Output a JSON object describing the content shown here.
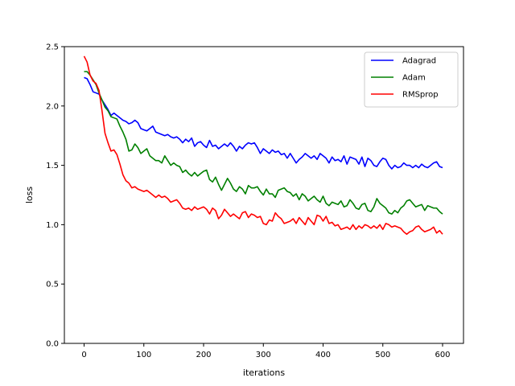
{
  "chart_data": {
    "type": "line",
    "title": "",
    "xlabel": "iterations",
    "ylabel": "loss",
    "xlim": [
      -33,
      635
    ],
    "ylim": [
      0,
      2.5
    ],
    "xticks": [
      0,
      100,
      200,
      300,
      400,
      500,
      600
    ],
    "yticks": [
      0.0,
      0.5,
      1.0,
      1.5,
      2.0,
      2.5
    ],
    "xtick_labels": [
      "0",
      "100",
      "200",
      "300",
      "400",
      "500",
      "600"
    ],
    "ytick_labels": [
      "0.0",
      "0.5",
      "1.0",
      "1.5",
      "2.0",
      "2.5"
    ],
    "grid": false,
    "legend_position": "top-right",
    "series": [
      {
        "name": "Adagrad",
        "color": "#0000ff",
        "x": [
          0,
          5,
          10,
          15,
          20,
          25,
          30,
          35,
          40,
          45,
          50,
          55,
          60,
          65,
          70,
          75,
          80,
          85,
          90,
          95,
          100,
          105,
          110,
          115,
          120,
          125,
          130,
          135,
          140,
          145,
          150,
          155,
          160,
          165,
          170,
          175,
          180,
          185,
          190,
          195,
          200,
          205,
          210,
          215,
          220,
          225,
          230,
          235,
          240,
          245,
          250,
          255,
          260,
          265,
          270,
          275,
          280,
          285,
          290,
          295,
          300,
          305,
          310,
          315,
          320,
          325,
          330,
          335,
          340,
          345,
          350,
          355,
          360,
          365,
          370,
          375,
          380,
          385,
          390,
          395,
          400,
          405,
          410,
          415,
          420,
          425,
          430,
          435,
          440,
          445,
          450,
          455,
          460,
          465,
          470,
          475,
          480,
          485,
          490,
          495,
          500,
          505,
          510,
          515,
          520,
          525,
          530,
          535,
          540,
          545,
          550,
          555,
          560,
          565,
          570,
          575,
          580,
          585,
          590,
          595,
          600
        ],
        "y": [
          2.24,
          2.23,
          2.18,
          2.12,
          2.11,
          2.1,
          2.05,
          2.01,
          1.97,
          1.92,
          1.94,
          1.92,
          1.9,
          1.88,
          1.87,
          1.85,
          1.86,
          1.88,
          1.86,
          1.81,
          1.8,
          1.79,
          1.81,
          1.83,
          1.78,
          1.77,
          1.76,
          1.75,
          1.76,
          1.74,
          1.73,
          1.74,
          1.72,
          1.69,
          1.72,
          1.7,
          1.73,
          1.66,
          1.69,
          1.7,
          1.67,
          1.65,
          1.71,
          1.66,
          1.67,
          1.64,
          1.66,
          1.68,
          1.66,
          1.69,
          1.66,
          1.62,
          1.66,
          1.64,
          1.67,
          1.69,
          1.68,
          1.69,
          1.65,
          1.6,
          1.64,
          1.62,
          1.6,
          1.63,
          1.61,
          1.62,
          1.59,
          1.6,
          1.56,
          1.6,
          1.56,
          1.52,
          1.55,
          1.57,
          1.6,
          1.58,
          1.56,
          1.58,
          1.55,
          1.6,
          1.58,
          1.56,
          1.52,
          1.57,
          1.54,
          1.55,
          1.53,
          1.58,
          1.51,
          1.57,
          1.56,
          1.55,
          1.51,
          1.57,
          1.49,
          1.56,
          1.54,
          1.5,
          1.49,
          1.53,
          1.56,
          1.55,
          1.5,
          1.47,
          1.5,
          1.48,
          1.49,
          1.52,
          1.5,
          1.5,
          1.48,
          1.5,
          1.48,
          1.51,
          1.49,
          1.48,
          1.5,
          1.52,
          1.53,
          1.49,
          1.48
        ]
      },
      {
        "name": "Adam",
        "color": "#008000",
        "x": [
          0,
          5,
          10,
          15,
          20,
          25,
          30,
          35,
          40,
          45,
          50,
          55,
          60,
          65,
          70,
          75,
          80,
          85,
          90,
          95,
          100,
          105,
          110,
          115,
          120,
          125,
          130,
          135,
          140,
          145,
          150,
          155,
          160,
          165,
          170,
          175,
          180,
          185,
          190,
          195,
          200,
          205,
          210,
          215,
          220,
          225,
          230,
          235,
          240,
          245,
          250,
          255,
          260,
          265,
          270,
          275,
          280,
          285,
          290,
          295,
          300,
          305,
          310,
          315,
          320,
          325,
          330,
          335,
          340,
          345,
          350,
          355,
          360,
          365,
          370,
          375,
          380,
          385,
          390,
          395,
          400,
          405,
          410,
          415,
          420,
          425,
          430,
          435,
          440,
          445,
          450,
          455,
          460,
          465,
          470,
          475,
          480,
          485,
          490,
          495,
          500,
          505,
          510,
          515,
          520,
          525,
          530,
          535,
          540,
          545,
          550,
          555,
          560,
          565,
          570,
          575,
          580,
          585,
          590,
          595,
          600
        ],
        "y": [
          2.29,
          2.29,
          2.26,
          2.22,
          2.18,
          2.11,
          2.05,
          1.99,
          1.96,
          1.91,
          1.9,
          1.89,
          1.83,
          1.78,
          1.72,
          1.62,
          1.63,
          1.68,
          1.65,
          1.6,
          1.62,
          1.64,
          1.58,
          1.56,
          1.54,
          1.54,
          1.52,
          1.58,
          1.54,
          1.5,
          1.52,
          1.5,
          1.49,
          1.44,
          1.46,
          1.43,
          1.41,
          1.44,
          1.41,
          1.43,
          1.45,
          1.46,
          1.38,
          1.36,
          1.4,
          1.34,
          1.29,
          1.34,
          1.39,
          1.35,
          1.3,
          1.28,
          1.32,
          1.3,
          1.26,
          1.33,
          1.31,
          1.31,
          1.32,
          1.28,
          1.25,
          1.3,
          1.26,
          1.26,
          1.23,
          1.29,
          1.3,
          1.31,
          1.28,
          1.27,
          1.24,
          1.26,
          1.21,
          1.26,
          1.24,
          1.2,
          1.22,
          1.24,
          1.21,
          1.19,
          1.24,
          1.18,
          1.16,
          1.19,
          1.18,
          1.17,
          1.2,
          1.15,
          1.16,
          1.21,
          1.18,
          1.14,
          1.13,
          1.17,
          1.18,
          1.12,
          1.11,
          1.15,
          1.22,
          1.18,
          1.16,
          1.14,
          1.1,
          1.09,
          1.12,
          1.1,
          1.14,
          1.16,
          1.2,
          1.21,
          1.18,
          1.15,
          1.16,
          1.17,
          1.12,
          1.16,
          1.15,
          1.14,
          1.14,
          1.11,
          1.09
        ]
      },
      {
        "name": "RMSprop",
        "color": "#ff0000",
        "x": [
          0,
          5,
          10,
          15,
          20,
          25,
          30,
          35,
          40,
          45,
          50,
          55,
          60,
          65,
          70,
          75,
          80,
          85,
          90,
          95,
          100,
          105,
          110,
          115,
          120,
          125,
          130,
          135,
          140,
          145,
          150,
          155,
          160,
          165,
          170,
          175,
          180,
          185,
          190,
          195,
          200,
          205,
          210,
          215,
          220,
          225,
          230,
          235,
          240,
          245,
          250,
          255,
          260,
          265,
          270,
          275,
          280,
          285,
          290,
          295,
          300,
          305,
          310,
          315,
          320,
          325,
          330,
          335,
          340,
          345,
          350,
          355,
          360,
          365,
          370,
          375,
          380,
          385,
          390,
          395,
          400,
          405,
          410,
          415,
          420,
          425,
          430,
          435,
          440,
          445,
          450,
          455,
          460,
          465,
          470,
          475,
          480,
          485,
          490,
          495,
          500,
          505,
          510,
          515,
          520,
          525,
          530,
          535,
          540,
          545,
          550,
          555,
          560,
          565,
          570,
          575,
          580,
          585,
          590,
          595,
          600
        ],
        "y": [
          2.42,
          2.37,
          2.26,
          2.21,
          2.19,
          2.13,
          1.96,
          1.77,
          1.69,
          1.62,
          1.63,
          1.59,
          1.51,
          1.42,
          1.37,
          1.35,
          1.31,
          1.32,
          1.3,
          1.29,
          1.28,
          1.29,
          1.27,
          1.25,
          1.23,
          1.25,
          1.23,
          1.24,
          1.22,
          1.19,
          1.2,
          1.21,
          1.18,
          1.14,
          1.13,
          1.14,
          1.12,
          1.15,
          1.13,
          1.14,
          1.15,
          1.13,
          1.09,
          1.14,
          1.12,
          1.05,
          1.08,
          1.13,
          1.1,
          1.07,
          1.09,
          1.07,
          1.05,
          1.1,
          1.11,
          1.06,
          1.09,
          1.08,
          1.06,
          1.07,
          1.01,
          1.0,
          1.04,
          1.03,
          1.1,
          1.07,
          1.05,
          1.01,
          1.02,
          1.03,
          1.05,
          1.01,
          1.06,
          1.03,
          1.0,
          1.06,
          1.03,
          1.0,
          1.08,
          1.07,
          1.03,
          1.07,
          1.01,
          1.02,
          0.99,
          1.0,
          0.96,
          0.97,
          0.98,
          0.96,
          1.0,
          0.96,
          0.99,
          0.97,
          1.0,
          0.99,
          0.97,
          0.99,
          0.97,
          1.0,
          0.96,
          1.01,
          1.0,
          0.98,
          0.99,
          0.98,
          0.97,
          0.94,
          0.92,
          0.94,
          0.95,
          0.98,
          0.99,
          0.96,
          0.94,
          0.95,
          0.96,
          0.98,
          0.93,
          0.95,
          0.92
        ]
      }
    ]
  }
}
